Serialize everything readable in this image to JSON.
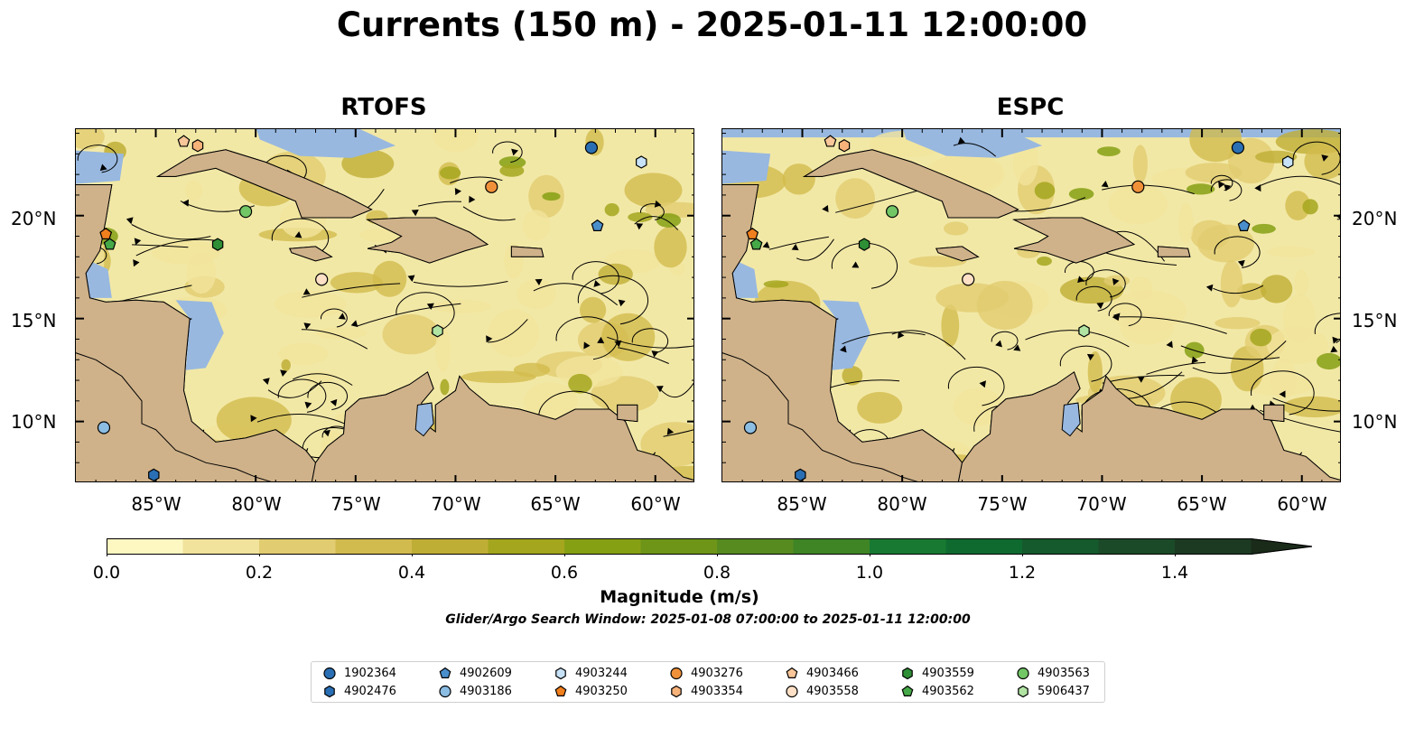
{
  "title": "Currents (150 m) - 2025-01-11 12:00:00",
  "panels": [
    {
      "title": "RTOFS"
    },
    {
      "title": "ESPC"
    }
  ],
  "x_ticks": [
    "85°W",
    "80°W",
    "75°W",
    "70°W",
    "65°W",
    "60°W"
  ],
  "y_ticks": [
    "20°N",
    "15°N",
    "10°N"
  ],
  "colorbar": {
    "label": "Magnitude (m/s)",
    "ticks": [
      "0.0",
      "0.2",
      "0.4",
      "0.6",
      "0.8",
      "1.0",
      "1.2",
      "1.4"
    ],
    "colors": [
      "#fdf7c2",
      "#f1e39c",
      "#e1cc71",
      "#d2bb4e",
      "#bfae36",
      "#a4a61e",
      "#86a014",
      "#6e9518",
      "#578b20",
      "#3f8526",
      "#187a32",
      "#0f6a30",
      "#155a2c",
      "#1b4a28",
      "#1c3a22",
      "#1a2b1a"
    ],
    "extend": "max"
  },
  "search_window": "Glider/Argo Search Window: 2025-01-08 07:00:00 to 2025-01-11 12:00:00",
  "map": {
    "lon_range": [
      -89,
      -58
    ],
    "lat_range": [
      7,
      24.2
    ],
    "ocean": "#f2e8a6",
    "land": "#cfb28a",
    "water_shallow": "#98b8e0"
  },
  "floats": [
    {
      "id": "1902364",
      "marker": "circle",
      "color": "#2a6fb4"
    },
    {
      "id": "4902476",
      "marker": "hexagon",
      "color": "#2a6fb4"
    },
    {
      "id": "4902609",
      "marker": "pentagon",
      "color": "#4a8fcb"
    },
    {
      "id": "4903186",
      "marker": "circle",
      "color": "#8cbde3"
    },
    {
      "id": "4903244",
      "marker": "hexagon",
      "color": "#c7e2f6"
    },
    {
      "id": "4903250",
      "marker": "pentagon",
      "color": "#f07f1d"
    },
    {
      "id": "4903276",
      "marker": "circle",
      "color": "#f0913a"
    },
    {
      "id": "4903354",
      "marker": "hexagon",
      "color": "#f7b27a"
    },
    {
      "id": "4903466",
      "marker": "pentagon",
      "color": "#f8c699"
    },
    {
      "id": "4903558",
      "marker": "circle",
      "color": "#fde0c5"
    },
    {
      "id": "4903559",
      "marker": "hexagon",
      "color": "#2e8f36"
    },
    {
      "id": "4903562",
      "marker": "pentagon",
      "color": "#46a948"
    },
    {
      "id": "4903563",
      "marker": "circle",
      "color": "#72c666"
    },
    {
      "id": "5906437",
      "marker": "hexagon",
      "color": "#b1e4a3"
    }
  ],
  "float_positions": [
    {
      "id": "1902364",
      "lon": -63.2,
      "lat": 23.3
    },
    {
      "id": "4902476",
      "lon": -85.1,
      "lat": 7.4
    },
    {
      "id": "4902609",
      "lon": -62.9,
      "lat": 19.5
    },
    {
      "id": "4903186",
      "lon": -87.6,
      "lat": 9.7
    },
    {
      "id": "4903244",
      "lon": -60.7,
      "lat": 22.6
    },
    {
      "id": "4903250",
      "lon": -87.5,
      "lat": 19.1
    },
    {
      "id": "4903276",
      "lon": -68.2,
      "lat": 21.4
    },
    {
      "id": "4903354",
      "lon": -82.9,
      "lat": 23.4
    },
    {
      "id": "4903466",
      "lon": -83.6,
      "lat": 23.6
    },
    {
      "id": "4903558",
      "lon": -76.7,
      "lat": 16.9
    },
    {
      "id": "4903559",
      "lon": -81.9,
      "lat": 18.6
    },
    {
      "id": "4903562",
      "lon": -87.3,
      "lat": 18.6
    },
    {
      "id": "4903563",
      "lon": -80.5,
      "lat": 20.2
    },
    {
      "id": "5906437",
      "lon": -70.9,
      "lat": 14.4
    }
  ]
}
